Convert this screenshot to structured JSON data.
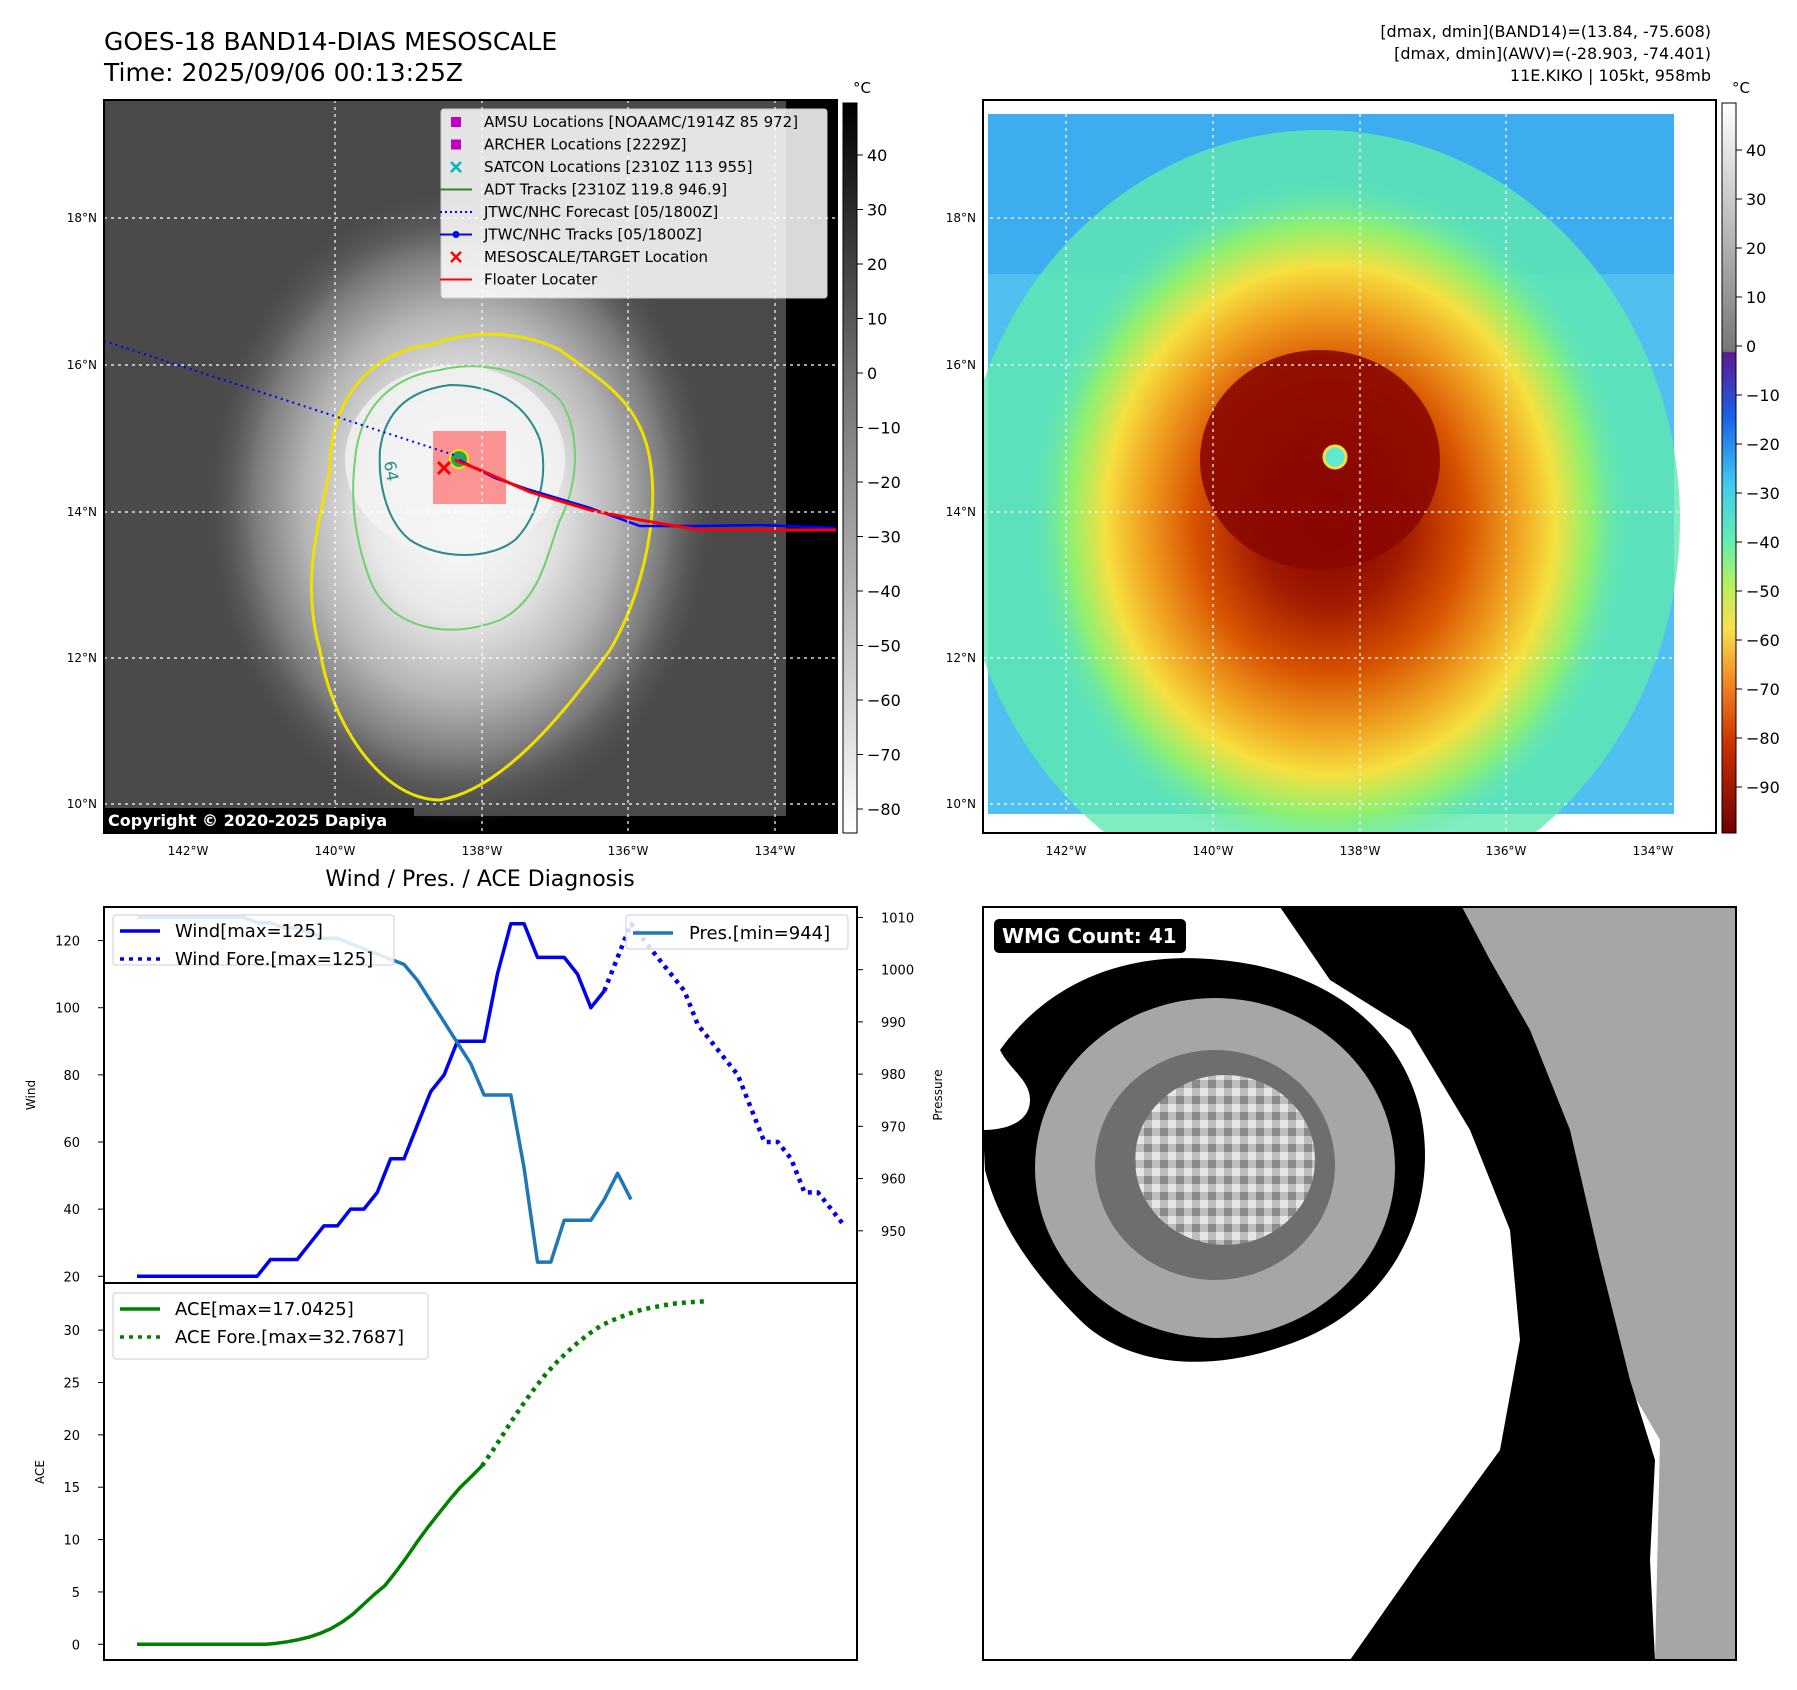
{
  "header": {
    "title": "GOES-18 BAND14-DIAS MESOSCALE",
    "time": "Time: 2025/09/06 00:13:25Z",
    "info_line1": "[dmax, dmin](BAND14)=(13.84, -75.608)",
    "info_line2": "[dmax, dmin](AWV)=(-28.903, -74.401)",
    "info_line3": "11E.KIKO | 105kt, 958mb"
  },
  "ir_panel": {
    "copyright": "Copyright © 2020-2025 Dapiya",
    "contour_label": "64",
    "colorbar_unit": "°C",
    "colorbar_ticks": [
      "40",
      "30",
      "20",
      "10",
      "0",
      "−10",
      "−20",
      "−30",
      "−40",
      "−50",
      "−60",
      "−70",
      "−80"
    ],
    "legend": [
      {
        "label": "AMSU Locations [NOAAMC/1914Z 85 972]",
        "marker": "square",
        "color": "#c000c0"
      },
      {
        "label": "ARCHER Locations [2229Z]",
        "marker": "square",
        "color": "#c000c0"
      },
      {
        "label": "SATCON Locations [2310Z 113 955]",
        "marker": "x",
        "color": "#00b5b5"
      },
      {
        "label": "ADT Tracks [2310Z 119.8 946.9]",
        "marker": "line",
        "color": "#2a8a2a"
      },
      {
        "label": "JTWC/NHC Forecast [05/1800Z]",
        "marker": "dotted",
        "color": "#0000ff"
      },
      {
        "label": "JTWC/NHC Tracks [05/1800Z]",
        "marker": "line-dot",
        "color": "#0000ff"
      },
      {
        "label": "MESOSCALE/TARGET Location",
        "marker": "x",
        "color": "#ff0000"
      },
      {
        "label": "Floater Locater",
        "marker": "line",
        "color": "#ff0000"
      }
    ]
  },
  "awv_panel": {
    "colorbar_unit": "°C",
    "colorbar_ticks": [
      "40",
      "30",
      "20",
      "10",
      "0",
      "−10",
      "−20",
      "−30",
      "−40",
      "−50",
      "−60",
      "−70",
      "−80",
      "−90"
    ]
  },
  "map_axes": {
    "lat_labels": [
      "18°N",
      "16°N",
      "14°N",
      "12°N",
      "10°N"
    ],
    "lon_labels": [
      "142°W",
      "140°W",
      "138°W",
      "136°W",
      "134°W"
    ]
  },
  "wmg_panel": {
    "badge": "WMG Count: 41"
  },
  "colors": {
    "wind": "#0000ee",
    "pressure": "#1f77b4",
    "ace": "#008000",
    "track_red": "#ff0000"
  },
  "chart_data": [
    {
      "type": "line",
      "title": "Wind / Pres. / ACE Diagnosis",
      "ylabel": "Wind",
      "y2label": "Pressure",
      "ylim": [
        18,
        130
      ],
      "y2lim": [
        940,
        1012
      ],
      "yticks": [
        20,
        40,
        60,
        80,
        100,
        120
      ],
      "y2ticks": [
        950,
        960,
        970,
        980,
        990,
        1000,
        1010
      ],
      "series": [
        {
          "name": "Wind[max=125]",
          "axis": "left",
          "style": "solid",
          "values": [
            20,
            20,
            20,
            20,
            20,
            20,
            20,
            20,
            20,
            20,
            25,
            25,
            25,
            30,
            35,
            35,
            40,
            40,
            45,
            55,
            55,
            65,
            75,
            80,
            90,
            90,
            90,
            110,
            125,
            125,
            115,
            115,
            115,
            110,
            100,
            105
          ]
        },
        {
          "name": "Wind Fore.[max=125]",
          "axis": "left",
          "style": "dotted",
          "values": [
            null,
            null,
            null,
            null,
            null,
            null,
            null,
            null,
            null,
            null,
            null,
            null,
            null,
            null,
            null,
            null,
            null,
            null,
            null,
            null,
            null,
            null,
            null,
            null,
            null,
            null,
            null,
            null,
            null,
            null,
            null,
            null,
            null,
            null,
            null,
            105,
            115,
            125,
            120,
            115,
            110,
            105,
            95,
            90,
            85,
            80,
            70,
            60,
            60,
            55,
            45,
            45,
            40,
            35
          ]
        },
        {
          "name": "Pres.[min=944]",
          "axis": "right",
          "style": "solid",
          "values": [
            1010,
            1010,
            1010,
            1010,
            1010,
            1010,
            1010,
            1010,
            1010,
            1009,
            1009,
            1008,
            1008,
            1007,
            1006,
            1006,
            1005,
            1004,
            1003,
            1002,
            1001,
            998,
            994,
            990,
            986,
            982,
            976,
            976,
            976,
            962,
            944,
            944,
            952,
            952,
            952,
            956,
            961,
            956
          ]
        }
      ]
    },
    {
      "type": "line",
      "ylabel": "ACE",
      "ylim": [
        -1.5,
        34.5
      ],
      "yticks": [
        0,
        5,
        10,
        15,
        20,
        25,
        30
      ],
      "series": [
        {
          "name": "ACE[max=17.0425]",
          "style": "solid",
          "values": [
            0,
            0,
            0,
            0,
            0,
            0,
            0,
            0,
            0,
            0,
            0,
            0,
            0,
            0.1,
            0.25,
            0.45,
            0.7,
            1.05,
            1.5,
            2.1,
            2.85,
            3.8,
            4.75,
            5.6,
            6.9,
            8.3,
            9.8,
            11.2,
            12.5,
            13.8,
            15,
            16,
            17.04
          ]
        },
        {
          "name": "ACE Fore.[max=32.7687]",
          "style": "dotted",
          "values": [
            null,
            null,
            null,
            null,
            null,
            null,
            null,
            null,
            null,
            null,
            null,
            null,
            null,
            null,
            null,
            null,
            null,
            null,
            null,
            null,
            null,
            null,
            null,
            null,
            null,
            null,
            null,
            null,
            null,
            null,
            null,
            null,
            17.04,
            18.5,
            20.1,
            21.7,
            23.2,
            24.6,
            25.9,
            27,
            28,
            28.9,
            29.7,
            30.4,
            30.9,
            31.3,
            31.7,
            32,
            32.2,
            32.4,
            32.55,
            32.65,
            32.7,
            32.77
          ]
        }
      ]
    }
  ]
}
